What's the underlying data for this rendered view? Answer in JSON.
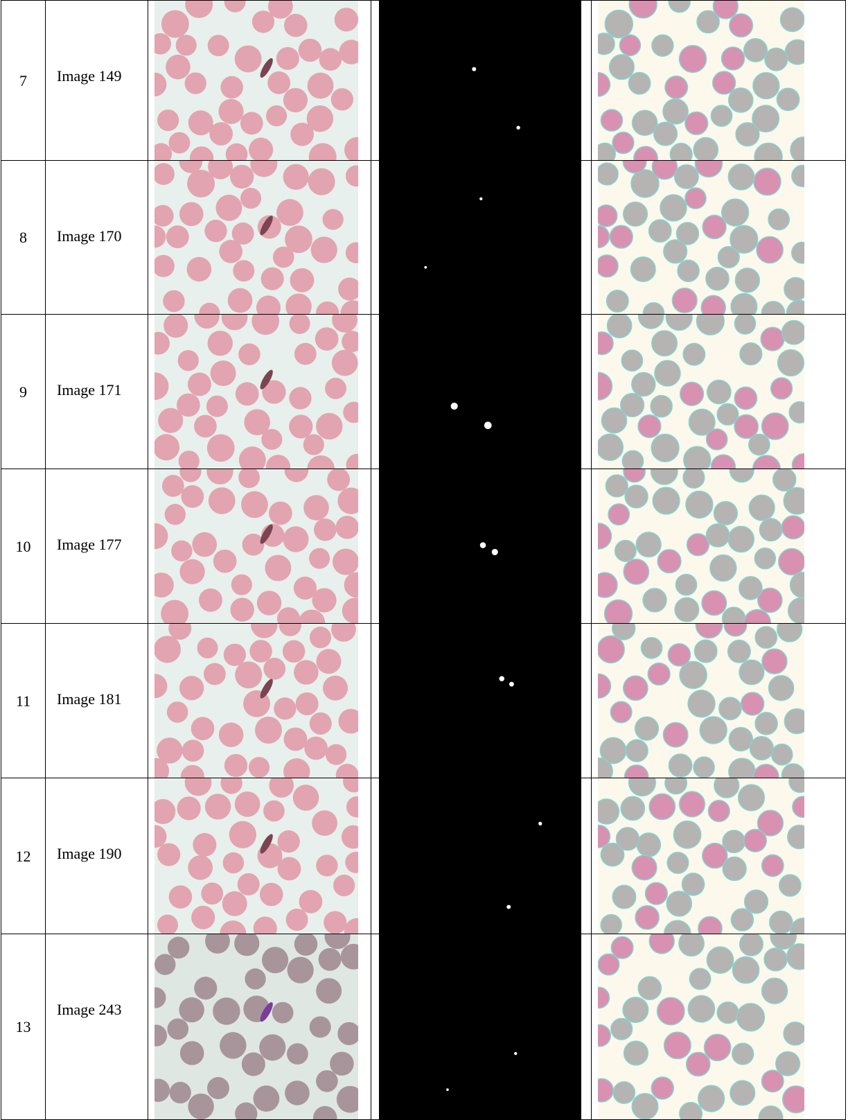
{
  "table": {
    "rows": [
      [
        "7",
        "Image 149"
      ],
      [
        "8",
        "Image 170"
      ],
      [
        "9",
        "Image 171"
      ],
      [
        "10",
        "Image 177"
      ],
      [
        "11",
        "Image 181"
      ],
      [
        "12",
        "Image 190"
      ],
      [
        "13",
        "Image 243"
      ]
    ]
  }
}
